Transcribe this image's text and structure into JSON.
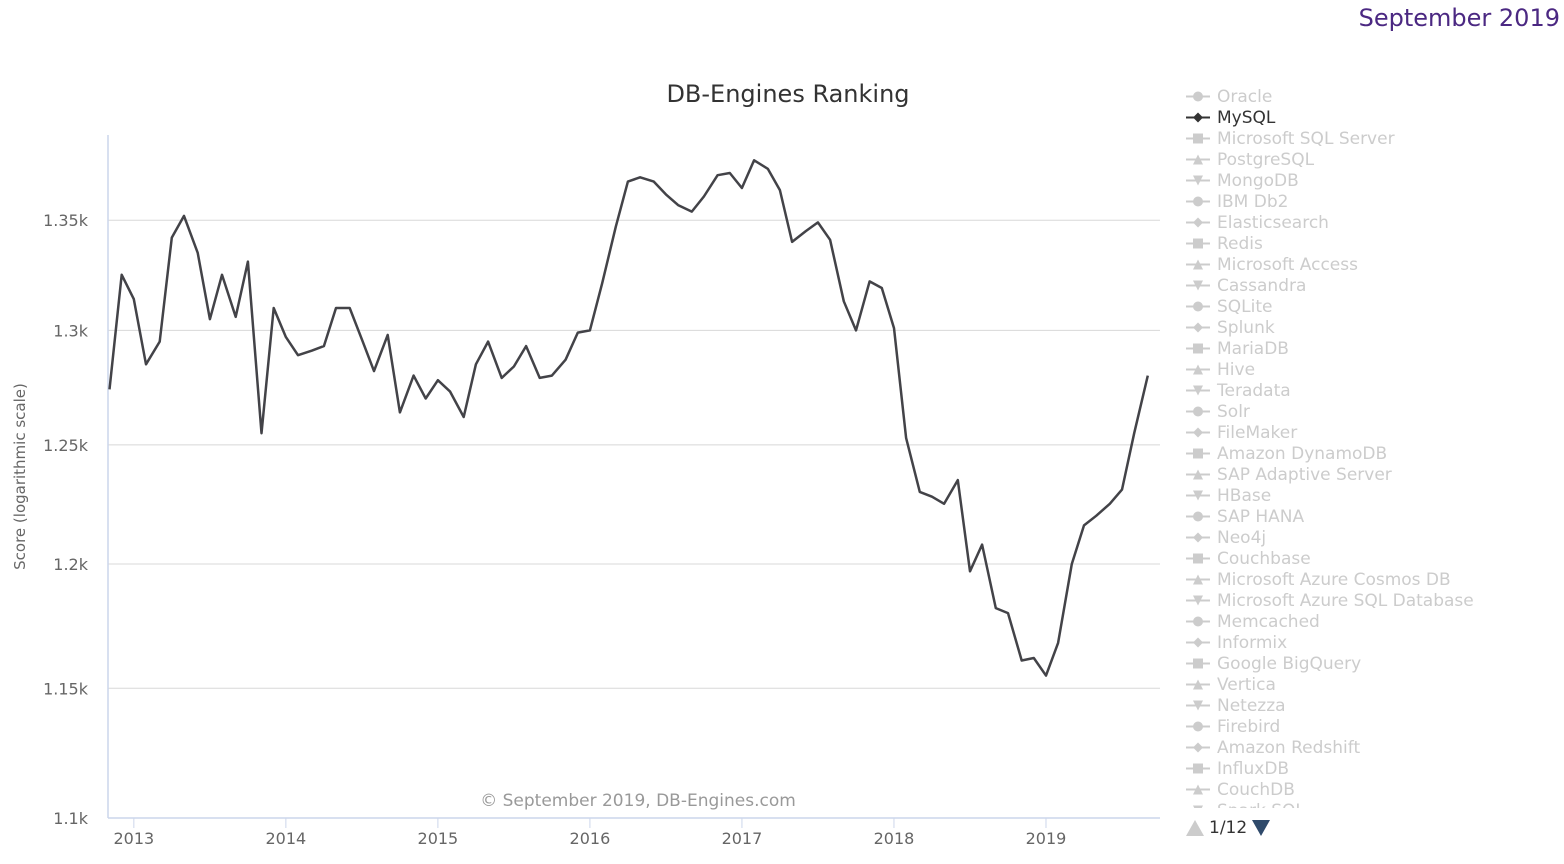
{
  "header": {
    "date_label": "September 2019"
  },
  "legend": {
    "items": [
      {
        "label": "Oracle",
        "symbol": "circle",
        "active": false
      },
      {
        "label": "MySQL",
        "symbol": "diamond",
        "active": true
      },
      {
        "label": "Microsoft SQL Server",
        "symbol": "square",
        "active": false
      },
      {
        "label": "PostgreSQL",
        "symbol": "triangle",
        "active": false
      },
      {
        "label": "MongoDB",
        "symbol": "triangle-down",
        "active": false
      },
      {
        "label": "IBM Db2",
        "symbol": "circle",
        "active": false
      },
      {
        "label": "Elasticsearch",
        "symbol": "diamond",
        "active": false
      },
      {
        "label": "Redis",
        "symbol": "square",
        "active": false
      },
      {
        "label": "Microsoft Access",
        "symbol": "triangle",
        "active": false
      },
      {
        "label": "Cassandra",
        "symbol": "triangle-down",
        "active": false
      },
      {
        "label": "SQLite",
        "symbol": "circle",
        "active": false
      },
      {
        "label": "Splunk",
        "symbol": "diamond",
        "active": false
      },
      {
        "label": "MariaDB",
        "symbol": "square",
        "active": false
      },
      {
        "label": "Hive",
        "symbol": "triangle",
        "active": false
      },
      {
        "label": "Teradata",
        "symbol": "triangle-down",
        "active": false
      },
      {
        "label": "Solr",
        "symbol": "circle",
        "active": false
      },
      {
        "label": "FileMaker",
        "symbol": "diamond",
        "active": false
      },
      {
        "label": "Amazon DynamoDB",
        "symbol": "square",
        "active": false
      },
      {
        "label": "SAP Adaptive Server",
        "symbol": "triangle",
        "active": false
      },
      {
        "label": "HBase",
        "symbol": "triangle-down",
        "active": false
      },
      {
        "label": "SAP HANA",
        "symbol": "circle",
        "active": false
      },
      {
        "label": "Neo4j",
        "symbol": "diamond",
        "active": false
      },
      {
        "label": "Couchbase",
        "symbol": "square",
        "active": false
      },
      {
        "label": "Microsoft Azure Cosmos DB",
        "symbol": "triangle",
        "active": false
      },
      {
        "label": "Microsoft Azure SQL Database",
        "symbol": "triangle-down",
        "active": false
      },
      {
        "label": "Memcached",
        "symbol": "circle",
        "active": false
      },
      {
        "label": "Informix",
        "symbol": "diamond",
        "active": false
      },
      {
        "label": "Google BigQuery",
        "symbol": "square",
        "active": false
      },
      {
        "label": "Vertica",
        "symbol": "triangle",
        "active": false
      },
      {
        "label": "Netezza",
        "symbol": "triangle-down",
        "active": false
      },
      {
        "label": "Firebird",
        "symbol": "circle",
        "active": false
      },
      {
        "label": "Amazon Redshift",
        "symbol": "diamond",
        "active": false
      },
      {
        "label": "InfluxDB",
        "symbol": "square",
        "active": false
      },
      {
        "label": "CouchDB",
        "symbol": "triangle",
        "active": false
      },
      {
        "label": "Spark SQL",
        "symbol": "triangle-down",
        "active": false
      }
    ],
    "pager": {
      "text": "1/12"
    }
  },
  "colors": {
    "line": "#434348",
    "grid": "#d8d8d8",
    "axis": "#ccd6eb",
    "text": "#666666",
    "legend_inactive": "#cccccc",
    "legend_active": "#333333",
    "pager_active": "#2f4a6b"
  },
  "chart_data": {
    "type": "line",
    "title": "DB-Engines Ranking",
    "credit": "© September 2019, DB-Engines.com",
    "xlabel": "",
    "ylabel": "Score (logarithmic scale)",
    "yscale": "log",
    "ylim": [
      1100,
      1390
    ],
    "yticks": [
      1100,
      1150,
      1200,
      1250,
      1300,
      1350
    ],
    "ytick_labels": [
      "1.1k",
      "1.15k",
      "1.2k",
      "1.25k",
      "1.3k",
      "1.35k"
    ],
    "xlim": [
      2012.83,
      2019.75
    ],
    "xticks": [
      2013,
      2014,
      2015,
      2016,
      2017,
      2018,
      2019
    ],
    "xtick_labels": [
      "2013",
      "2014",
      "2015",
      "2016",
      "2017",
      "2018",
      "2019"
    ],
    "grid": true,
    "series": [
      {
        "name": "MySQL",
        "x": [
          2012.84,
          2012.92,
          2013.0,
          2013.08,
          2013.17,
          2013.25,
          2013.33,
          2013.42,
          2013.5,
          2013.58,
          2013.67,
          2013.75,
          2013.84,
          2013.92,
          2014.0,
          2014.08,
          2014.17,
          2014.25,
          2014.33,
          2014.42,
          2014.5,
          2014.58,
          2014.67,
          2014.75,
          2014.84,
          2014.92,
          2015.0,
          2015.08,
          2015.17,
          2015.25,
          2015.33,
          2015.42,
          2015.5,
          2015.58,
          2015.67,
          2015.75,
          2015.84,
          2015.92,
          2016.0,
          2016.08,
          2016.17,
          2016.25,
          2016.33,
          2016.42,
          2016.5,
          2016.58,
          2016.67,
          2016.75,
          2016.84,
          2016.92,
          2017.0,
          2017.08,
          2017.17,
          2017.25,
          2017.33,
          2017.42,
          2017.5,
          2017.58,
          2017.67,
          2017.75,
          2017.84,
          2017.92,
          2018.0,
          2018.08,
          2018.17,
          2018.25,
          2018.33,
          2018.42,
          2018.5,
          2018.58,
          2018.67,
          2018.75,
          2018.84,
          2018.92,
          2019.0,
          2019.08,
          2019.17,
          2019.25,
          2019.33,
          2019.42,
          2019.5,
          2019.58,
          2019.67
        ],
        "values": [
          1274,
          1325,
          1314,
          1285,
          1295,
          1342,
          1352,
          1335,
          1305,
          1325,
          1306,
          1331,
          1255,
          1310,
          1297,
          1289,
          1291,
          1293,
          1310,
          1310,
          1296,
          1282,
          1298,
          1264,
          1280,
          1270,
          1278,
          1273,
          1262,
          1285,
          1295,
          1279,
          1284,
          1293,
          1279,
          1280,
          1287,
          1299,
          1300,
          1321,
          1347,
          1368,
          1370,
          1368,
          1362,
          1357,
          1354,
          1361,
          1371,
          1372,
          1365,
          1378,
          1374,
          1364,
          1340,
          1345,
          1349,
          1341,
          1313,
          1300,
          1322,
          1319,
          1301,
          1253,
          1230,
          1228,
          1225,
          1235,
          1197,
          1208,
          1182,
          1180,
          1161,
          1162,
          1155,
          1168,
          1200,
          1216,
          1220,
          1225,
          1231,
          1255,
          1280
        ]
      }
    ]
  }
}
